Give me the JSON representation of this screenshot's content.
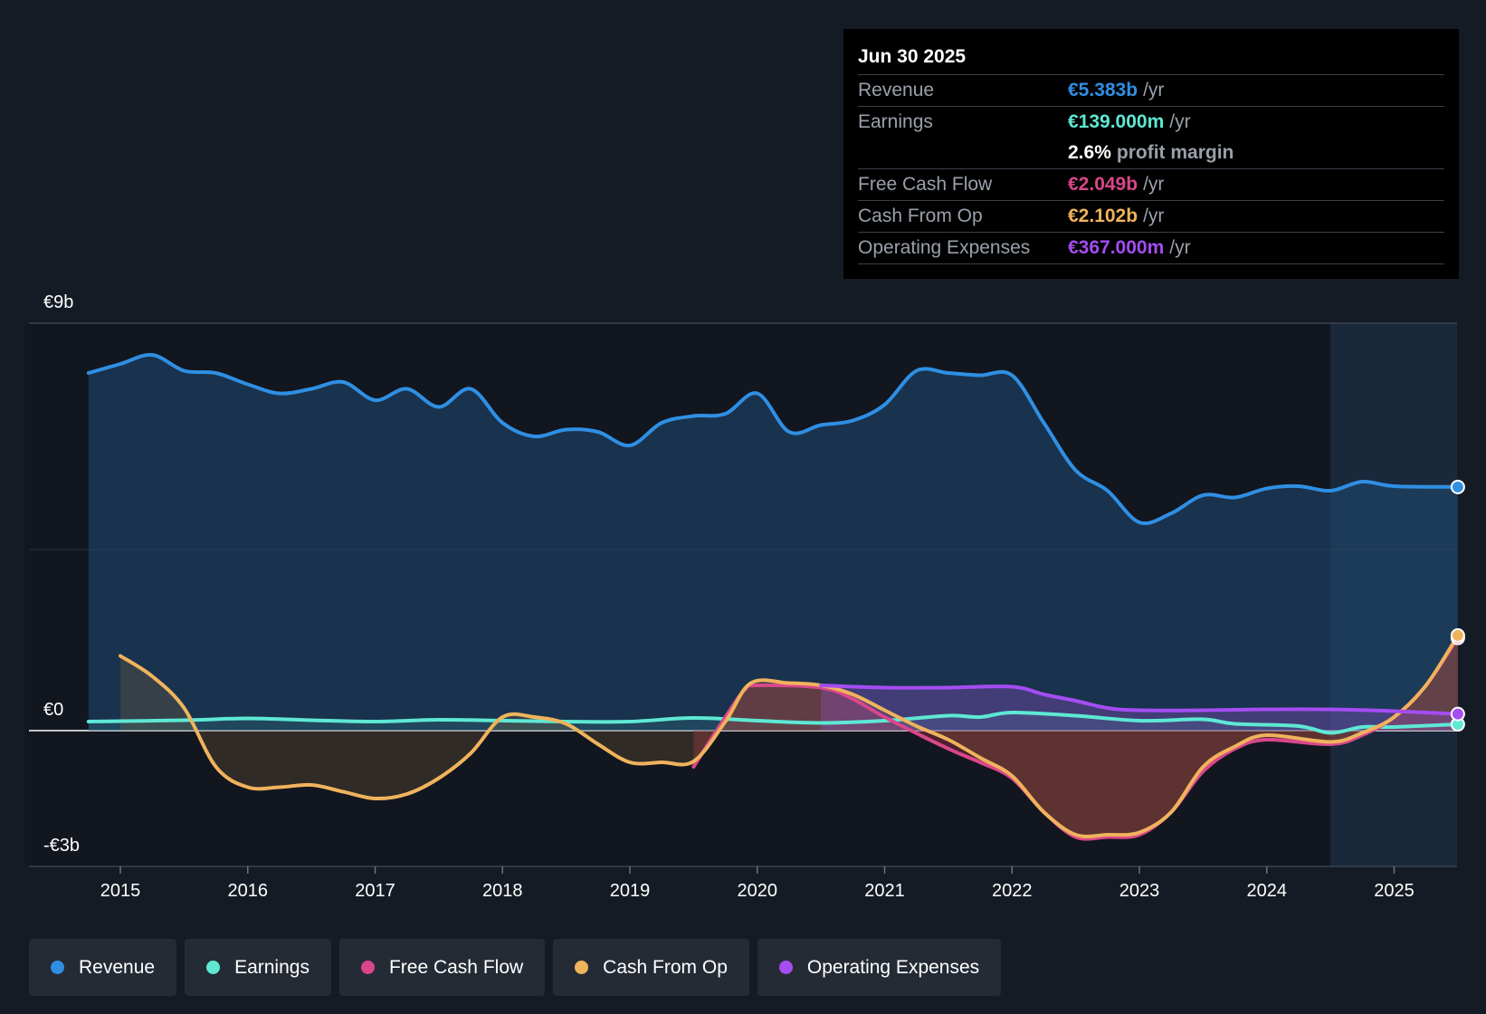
{
  "tooltip": {
    "date": "Jun 30 2025",
    "rows": [
      {
        "label": "Revenue",
        "value": "€5.383b",
        "unit": "/yr",
        "color": "#2f8fe3"
      },
      {
        "label": "Earnings",
        "value": "€139.000m",
        "unit": "/yr",
        "color": "#5ee8d4"
      },
      {
        "label": "",
        "value": "2.6%",
        "unit": "profit margin",
        "color": "#ffffff"
      },
      {
        "label": "Free Cash Flow",
        "value": "€2.049b",
        "unit": "/yr",
        "color": "#d9478a"
      },
      {
        "label": "Cash From Op",
        "value": "€2.102b",
        "unit": "/yr",
        "color": "#f0b35c"
      },
      {
        "label": "Operating Expenses",
        "value": "€367.000m",
        "unit": "/yr",
        "color": "#a44df2"
      }
    ]
  },
  "legend": [
    {
      "label": "Revenue",
      "color": "#2f8fe3"
    },
    {
      "label": "Earnings",
      "color": "#5ee8d4"
    },
    {
      "label": "Free Cash Flow",
      "color": "#d9478a"
    },
    {
      "label": "Cash From Op",
      "color": "#f0b35c"
    },
    {
      "label": "Operating Expenses",
      "color": "#a44df2"
    }
  ],
  "chart_data": {
    "type": "line",
    "y_top_label": "€9b",
    "y_zero_label": "€0",
    "y_bottom_label": "-€3b",
    "ylim": [
      -3,
      9
    ],
    "xlim": [
      2014.25,
      2025.5
    ],
    "forecast_start": 2024.5,
    "x_ticks": [
      "2015",
      "2016",
      "2017",
      "2018",
      "2019",
      "2020",
      "2021",
      "2022",
      "2023",
      "2024",
      "2025"
    ],
    "series": [
      {
        "name": "Revenue",
        "color": "#2f8fe3",
        "points": [
          [
            2014.75,
            7.9
          ],
          [
            2015.0,
            8.1
          ],
          [
            2015.25,
            8.3
          ],
          [
            2015.5,
            7.95
          ],
          [
            2015.75,
            7.9
          ],
          [
            2016.0,
            7.65
          ],
          [
            2016.25,
            7.45
          ],
          [
            2016.5,
            7.55
          ],
          [
            2016.75,
            7.7
          ],
          [
            2017.0,
            7.3
          ],
          [
            2017.25,
            7.55
          ],
          [
            2017.5,
            7.15
          ],
          [
            2017.75,
            7.55
          ],
          [
            2018.0,
            6.8
          ],
          [
            2018.25,
            6.5
          ],
          [
            2018.5,
            6.65
          ],
          [
            2018.75,
            6.6
          ],
          [
            2019.0,
            6.3
          ],
          [
            2019.25,
            6.8
          ],
          [
            2019.5,
            6.95
          ],
          [
            2019.75,
            7.0
          ],
          [
            2020.0,
            7.45
          ],
          [
            2020.25,
            6.6
          ],
          [
            2020.5,
            6.75
          ],
          [
            2020.75,
            6.85
          ],
          [
            2021.0,
            7.2
          ],
          [
            2021.25,
            7.95
          ],
          [
            2021.5,
            7.9
          ],
          [
            2021.75,
            7.85
          ],
          [
            2022.0,
            7.85
          ],
          [
            2022.25,
            6.8
          ],
          [
            2022.5,
            5.75
          ],
          [
            2022.75,
            5.3
          ],
          [
            2023.0,
            4.6
          ],
          [
            2023.25,
            4.8
          ],
          [
            2023.5,
            5.2
          ],
          [
            2023.75,
            5.15
          ],
          [
            2024.0,
            5.35
          ],
          [
            2024.25,
            5.4
          ],
          [
            2024.5,
            5.3
          ],
          [
            2024.75,
            5.5
          ],
          [
            2025.0,
            5.4
          ],
          [
            2025.5,
            5.383
          ]
        ]
      },
      {
        "name": "Earnings",
        "color": "#5ee8d4",
        "points": [
          [
            2014.75,
            0.2
          ],
          [
            2015.5,
            0.23
          ],
          [
            2016.0,
            0.27
          ],
          [
            2016.5,
            0.23
          ],
          [
            2017.0,
            0.2
          ],
          [
            2017.5,
            0.24
          ],
          [
            2018.0,
            0.22
          ],
          [
            2018.5,
            0.2
          ],
          [
            2019.0,
            0.2
          ],
          [
            2019.5,
            0.28
          ],
          [
            2020.0,
            0.22
          ],
          [
            2020.5,
            0.17
          ],
          [
            2021.0,
            0.22
          ],
          [
            2021.5,
            0.33
          ],
          [
            2021.75,
            0.3
          ],
          [
            2022.0,
            0.4
          ],
          [
            2022.5,
            0.33
          ],
          [
            2023.0,
            0.22
          ],
          [
            2023.5,
            0.25
          ],
          [
            2023.75,
            0.15
          ],
          [
            2024.25,
            0.1
          ],
          [
            2024.5,
            -0.05
          ],
          [
            2024.75,
            0.08
          ],
          [
            2025.0,
            0.08
          ],
          [
            2025.5,
            0.139
          ]
        ]
      },
      {
        "name": "Free Cash Flow",
        "color": "#d9478a",
        "points": [
          [
            2019.5,
            -0.8
          ],
          [
            2019.75,
            0.3
          ],
          [
            2019.9,
            0.9
          ],
          [
            2020.0,
            1.0
          ],
          [
            2020.5,
            0.95
          ],
          [
            2020.75,
            0.7
          ],
          [
            2021.0,
            0.3
          ],
          [
            2021.5,
            -0.4
          ],
          [
            2021.75,
            -0.7
          ],
          [
            2022.0,
            -1.05
          ],
          [
            2022.25,
            -1.8
          ],
          [
            2022.5,
            -2.35
          ],
          [
            2022.75,
            -2.35
          ],
          [
            2023.0,
            -2.3
          ],
          [
            2023.25,
            -1.8
          ],
          [
            2023.5,
            -0.9
          ],
          [
            2023.75,
            -0.4
          ],
          [
            2024.0,
            -0.2
          ],
          [
            2024.5,
            -0.3
          ],
          [
            2024.75,
            -0.1
          ],
          [
            2025.0,
            0.3
          ],
          [
            2025.25,
            1.0
          ],
          [
            2025.5,
            2.049
          ]
        ]
      },
      {
        "name": "Cash From Op",
        "color": "#f0b35c",
        "points": [
          [
            2015.0,
            1.65
          ],
          [
            2015.25,
            1.2
          ],
          [
            2015.5,
            0.5
          ],
          [
            2015.75,
            -0.8
          ],
          [
            2016.0,
            -1.25
          ],
          [
            2016.25,
            -1.25
          ],
          [
            2016.5,
            -1.2
          ],
          [
            2016.75,
            -1.35
          ],
          [
            2017.0,
            -1.5
          ],
          [
            2017.25,
            -1.4
          ],
          [
            2017.5,
            -1.05
          ],
          [
            2017.75,
            -0.5
          ],
          [
            2018.0,
            0.3
          ],
          [
            2018.25,
            0.3
          ],
          [
            2018.5,
            0.15
          ],
          [
            2018.75,
            -0.3
          ],
          [
            2019.0,
            -0.7
          ],
          [
            2019.25,
            -0.7
          ],
          [
            2019.5,
            -0.68
          ],
          [
            2019.75,
            0.2
          ],
          [
            2019.95,
            1.05
          ],
          [
            2020.25,
            1.05
          ],
          [
            2020.5,
            1.0
          ],
          [
            2020.75,
            0.8
          ],
          [
            2021.0,
            0.45
          ],
          [
            2021.25,
            0.1
          ],
          [
            2021.5,
            -0.2
          ],
          [
            2021.75,
            -0.6
          ],
          [
            2022.0,
            -1.0
          ],
          [
            2022.25,
            -1.8
          ],
          [
            2022.5,
            -2.3
          ],
          [
            2022.75,
            -2.3
          ],
          [
            2023.0,
            -2.25
          ],
          [
            2023.25,
            -1.8
          ],
          [
            2023.5,
            -0.8
          ],
          [
            2023.75,
            -0.35
          ],
          [
            2024.0,
            -0.1
          ],
          [
            2024.5,
            -0.25
          ],
          [
            2024.75,
            -0.05
          ],
          [
            2025.0,
            0.3
          ],
          [
            2025.25,
            1.0
          ],
          [
            2025.5,
            2.102
          ]
        ]
      },
      {
        "name": "Operating Expenses",
        "color": "#a44df2",
        "points": [
          [
            2020.5,
            1.0
          ],
          [
            2021.0,
            0.95
          ],
          [
            2021.5,
            0.95
          ],
          [
            2022.0,
            0.97
          ],
          [
            2022.25,
            0.8
          ],
          [
            2022.5,
            0.66
          ],
          [
            2022.75,
            0.5
          ],
          [
            2023.0,
            0.45
          ],
          [
            2023.5,
            0.45
          ],
          [
            2024.0,
            0.47
          ],
          [
            2024.5,
            0.47
          ],
          [
            2025.0,
            0.43
          ],
          [
            2025.5,
            0.367
          ]
        ]
      }
    ]
  }
}
